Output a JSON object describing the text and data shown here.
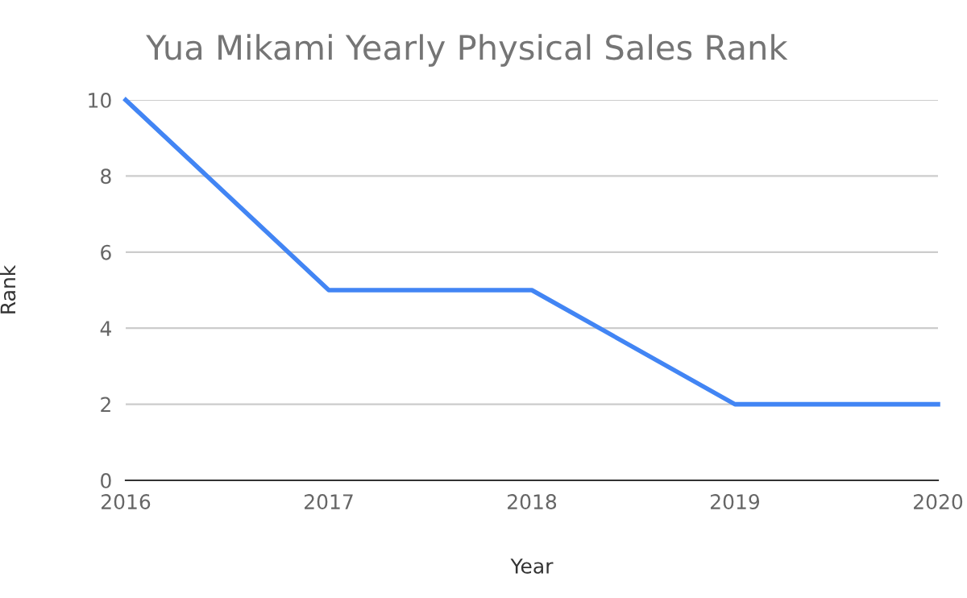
{
  "chart_data": {
    "type": "line",
    "title": "Yua Mikami Yearly Physical Sales Rank",
    "xlabel": "Year",
    "ylabel": "Rank",
    "x": [
      2016,
      2017,
      2018,
      2019,
      2020
    ],
    "series": [
      {
        "color": "#4285f4",
        "values": [
          10,
          5,
          5,
          2,
          2
        ]
      }
    ],
    "xlim": [
      2016,
      2020
    ],
    "xticks": [
      2016,
      2017,
      2018,
      2019,
      2020
    ],
    "ylim": [
      0,
      10
    ],
    "yticks": [
      0,
      2,
      4,
      6,
      8,
      10
    ],
    "grid": "y",
    "marker": "none",
    "line_style": "solid"
  }
}
